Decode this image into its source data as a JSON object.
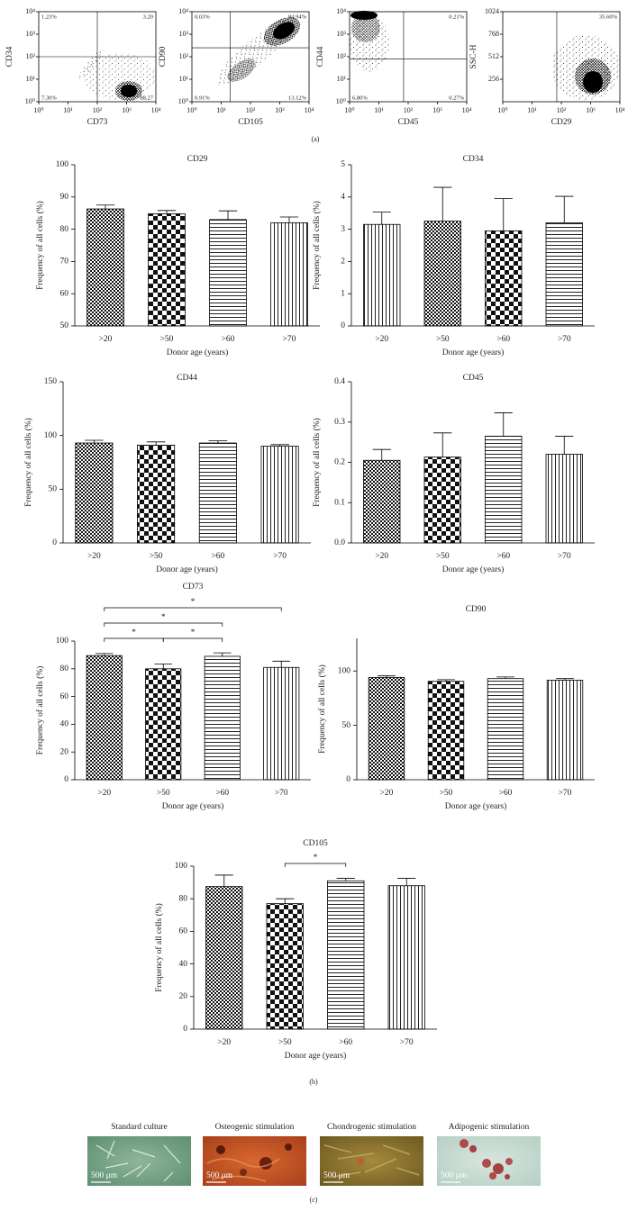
{
  "flow_cytometry": {
    "caption": "(a)",
    "plots": [
      {
        "x_label": "CD73",
        "y_label": "CD34",
        "xscale": "log",
        "yscale": "log",
        "xlim": [
          1,
          10000
        ],
        "ylim": [
          1,
          10000
        ],
        "xticks": [
          {
            "value": 1,
            "label": "10⁰"
          },
          {
            "value": 10,
            "label": "10¹"
          },
          {
            "value": 100,
            "label": "10²"
          },
          {
            "value": 1000,
            "label": "10³"
          },
          {
            "value": 10000,
            "label": "10⁴"
          }
        ],
        "yticks": [
          {
            "value": 1,
            "label": "10⁰"
          },
          {
            "value": 10,
            "label": "10¹"
          },
          {
            "value": 100,
            "label": "10²"
          },
          {
            "value": 1000,
            "label": "10³"
          },
          {
            "value": 10000,
            "label": "10⁴"
          }
        ],
        "gate_x": 100,
        "gate_y": 100,
        "quadrant_labels": [
          "1.23%",
          "3.20",
          "7.30%",
          "88.27"
        ]
      },
      {
        "x_label": "CD105",
        "y_label": "CD90",
        "xscale": "log",
        "yscale": "log",
        "xlim": [
          1,
          10000
        ],
        "ylim": [
          1,
          10000
        ],
        "xticks": [
          {
            "value": 1,
            "label": "10⁰"
          },
          {
            "value": 10,
            "label": "10¹"
          },
          {
            "value": 100,
            "label": "10²"
          },
          {
            "value": 1000,
            "label": "10³"
          },
          {
            "value": 10000,
            "label": "10⁴"
          }
        ],
        "yticks": [
          {
            "value": 1,
            "label": "10⁰"
          },
          {
            "value": 10,
            "label": "10¹"
          },
          {
            "value": 100,
            "label": "10²"
          },
          {
            "value": 1000,
            "label": "10³"
          },
          {
            "value": 10000,
            "label": "10⁴"
          }
        ],
        "gate_x": 20,
        "gate_y": 250,
        "quadrant_labels": [
          "0.03%",
          "84.94%",
          "0.91%",
          "13.12%"
        ]
      },
      {
        "x_label": "CD45",
        "y_label": "CD44",
        "xscale": "log",
        "yscale": "log",
        "xlim": [
          1,
          10000
        ],
        "ylim": [
          1,
          10000
        ],
        "xticks": [
          {
            "value": 1,
            "label": "10⁰"
          },
          {
            "value": 10,
            "label": "10¹"
          },
          {
            "value": 100,
            "label": "10²"
          },
          {
            "value": 1000,
            "label": "10³"
          },
          {
            "value": 10000,
            "label": "10⁴"
          }
        ],
        "yticks": [
          {
            "value": 1,
            "label": "10⁰"
          },
          {
            "value": 10,
            "label": "10¹"
          },
          {
            "value": 100,
            "label": "10²"
          },
          {
            "value": 1000,
            "label": "10³"
          },
          {
            "value": 10000,
            "label": "10⁴"
          }
        ],
        "gate_x": 70,
        "gate_y": 80,
        "quadrant_labels": [
          "0.21%",
          "6.80%",
          "0.27%"
        ]
      },
      {
        "x_label": "CD29",
        "y_label": "SSC-H",
        "xscale": "log",
        "yscale": "linear",
        "xlim": [
          1,
          10000
        ],
        "ylim": [
          0,
          1024
        ],
        "xticks": [
          {
            "value": 1,
            "label": "10⁰"
          },
          {
            "value": 10,
            "label": "10¹"
          },
          {
            "value": 100,
            "label": "10²"
          },
          {
            "value": 1000,
            "label": "10³"
          },
          {
            "value": 10000,
            "label": "10⁴"
          }
        ],
        "yticks": [
          256,
          512,
          768,
          1024
        ],
        "gate_x": 70,
        "quadrant_labels": [
          "35.60%"
        ]
      }
    ]
  },
  "chart_data": [
    {
      "type": "bar",
      "title": "CD29",
      "y_label": "Frequency of all cells (%)",
      "x_label": "Donor age (years)",
      "categories": [
        ">20",
        ">50",
        ">60",
        ">70"
      ],
      "values": [
        86.3,
        84.8,
        83.0,
        82.0
      ],
      "errors": [
        1.2,
        1.0,
        2.7,
        1.8
      ],
      "patterns": [
        "fine-check",
        "coarse-check",
        "hlines",
        "vlines"
      ],
      "ylim": [
        50,
        100
      ],
      "yticks": [
        50,
        60,
        70,
        80,
        90,
        100
      ]
    },
    {
      "type": "bar",
      "title": "CD34",
      "y_label": "Frequency of all cells (%)",
      "x_label": "Donor age (years)",
      "categories": [
        ">20",
        ">50",
        ">60",
        ">70"
      ],
      "values": [
        3.15,
        3.25,
        2.95,
        3.2
      ],
      "errors": [
        0.38,
        1.05,
        1.0,
        0.82
      ],
      "patterns": [
        "vlines",
        "fine-check",
        "coarse-check",
        "hlines"
      ],
      "ylim": [
        0,
        5
      ],
      "yticks": [
        0,
        1,
        2,
        3,
        4,
        5
      ]
    },
    {
      "type": "bar",
      "title": "CD44",
      "y_label": "Frequency of all cells (%)",
      "x_label": "Donor age (years)",
      "categories": [
        ">20",
        ">50",
        ">60",
        ">70"
      ],
      "values": [
        93,
        91,
        93,
        90
      ],
      "errors": [
        2.5,
        3,
        2,
        1.5
      ],
      "patterns": [
        "fine-check",
        "coarse-check",
        "hlines",
        "vlines"
      ],
      "ylim": [
        0,
        150
      ],
      "yticks": [
        0,
        50,
        100,
        150
      ]
    },
    {
      "type": "bar",
      "title": "CD45",
      "y_label": "Frequency of all cells (%)",
      "x_label": "Donor age (years)",
      "categories": [
        ">20",
        ">50",
        ">60",
        ">70"
      ],
      "values": [
        0.205,
        0.213,
        0.265,
        0.22
      ],
      "errors": [
        0.027,
        0.06,
        0.058,
        0.045
      ],
      "patterns": [
        "fine-check",
        "coarse-check",
        "hlines",
        "vlines"
      ],
      "ylim": [
        0,
        0.4
      ],
      "yticks": [
        {
          "value": 0,
          "label": "0.0"
        },
        0.1,
        0.2,
        0.3,
        0.4
      ]
    },
    {
      "type": "bar",
      "title": "CD73",
      "y_label": "Frequency of all cells (%)",
      "x_label": "Donor age (years)",
      "categories": [
        ">20",
        ">50",
        ">60",
        ">70"
      ],
      "values": [
        89.5,
        80,
        89,
        81
      ],
      "errors": [
        1.5,
        3.5,
        2.5,
        4.5
      ],
      "patterns": [
        "fine-check",
        "coarse-check",
        "hlines",
        "vlines"
      ],
      "ylim": [
        0,
        100
      ],
      "yticks": [
        0,
        20,
        40,
        60,
        80,
        100
      ],
      "significance": [
        {
          "pair": [
            0,
            1
          ],
          "label": "*"
        },
        {
          "pair": [
            1,
            2
          ],
          "label": "*"
        },
        {
          "pair": [
            0,
            2
          ],
          "label": "*"
        },
        {
          "pair": [
            0,
            3
          ],
          "label": "*"
        }
      ]
    },
    {
      "type": "bar",
      "title": "CD90",
      "y_label": "Frequency of all cells (%)",
      "x_label": "Donor age (years)",
      "categories": [
        ">20",
        ">50",
        ">60",
        ">70"
      ],
      "values": [
        94,
        90.5,
        93,
        91.5
      ],
      "errors": [
        1.5,
        1.5,
        1.5,
        1.5
      ],
      "patterns": [
        "fine-check",
        "coarse-check",
        "hlines",
        "vlines"
      ],
      "ylim": [
        0,
        130
      ],
      "yticks": [
        0,
        50,
        100
      ]
    },
    {
      "type": "bar",
      "title": "CD105",
      "y_label": "Frequency of all cells (%)",
      "x_label": "Donor age (years)",
      "categories": [
        ">20",
        ">50",
        ">60",
        ">70"
      ],
      "values": [
        87.5,
        77,
        91,
        88
      ],
      "errors": [
        7,
        3,
        1.5,
        4.5
      ],
      "patterns": [
        "fine-check",
        "coarse-check",
        "hlines",
        "vlines"
      ],
      "ylim": [
        0,
        100
      ],
      "yticks": [
        0,
        20,
        40,
        60,
        80,
        100
      ],
      "significance": [
        {
          "pair": [
            1,
            2
          ],
          "label": "*"
        }
      ]
    }
  ],
  "bar_panel_caption": "(b)",
  "differentiation": {
    "caption": "(c)",
    "images": [
      {
        "title": "Standard culture",
        "scale_bar": "500 μm"
      },
      {
        "title": "Osteogenic stimulation",
        "scale_bar": "500 μm"
      },
      {
        "title": "Chondrogenic stimulation",
        "scale_bar": "500 μm"
      },
      {
        "title": "Adipogenic stimulation",
        "scale_bar": "500 μm"
      }
    ]
  }
}
